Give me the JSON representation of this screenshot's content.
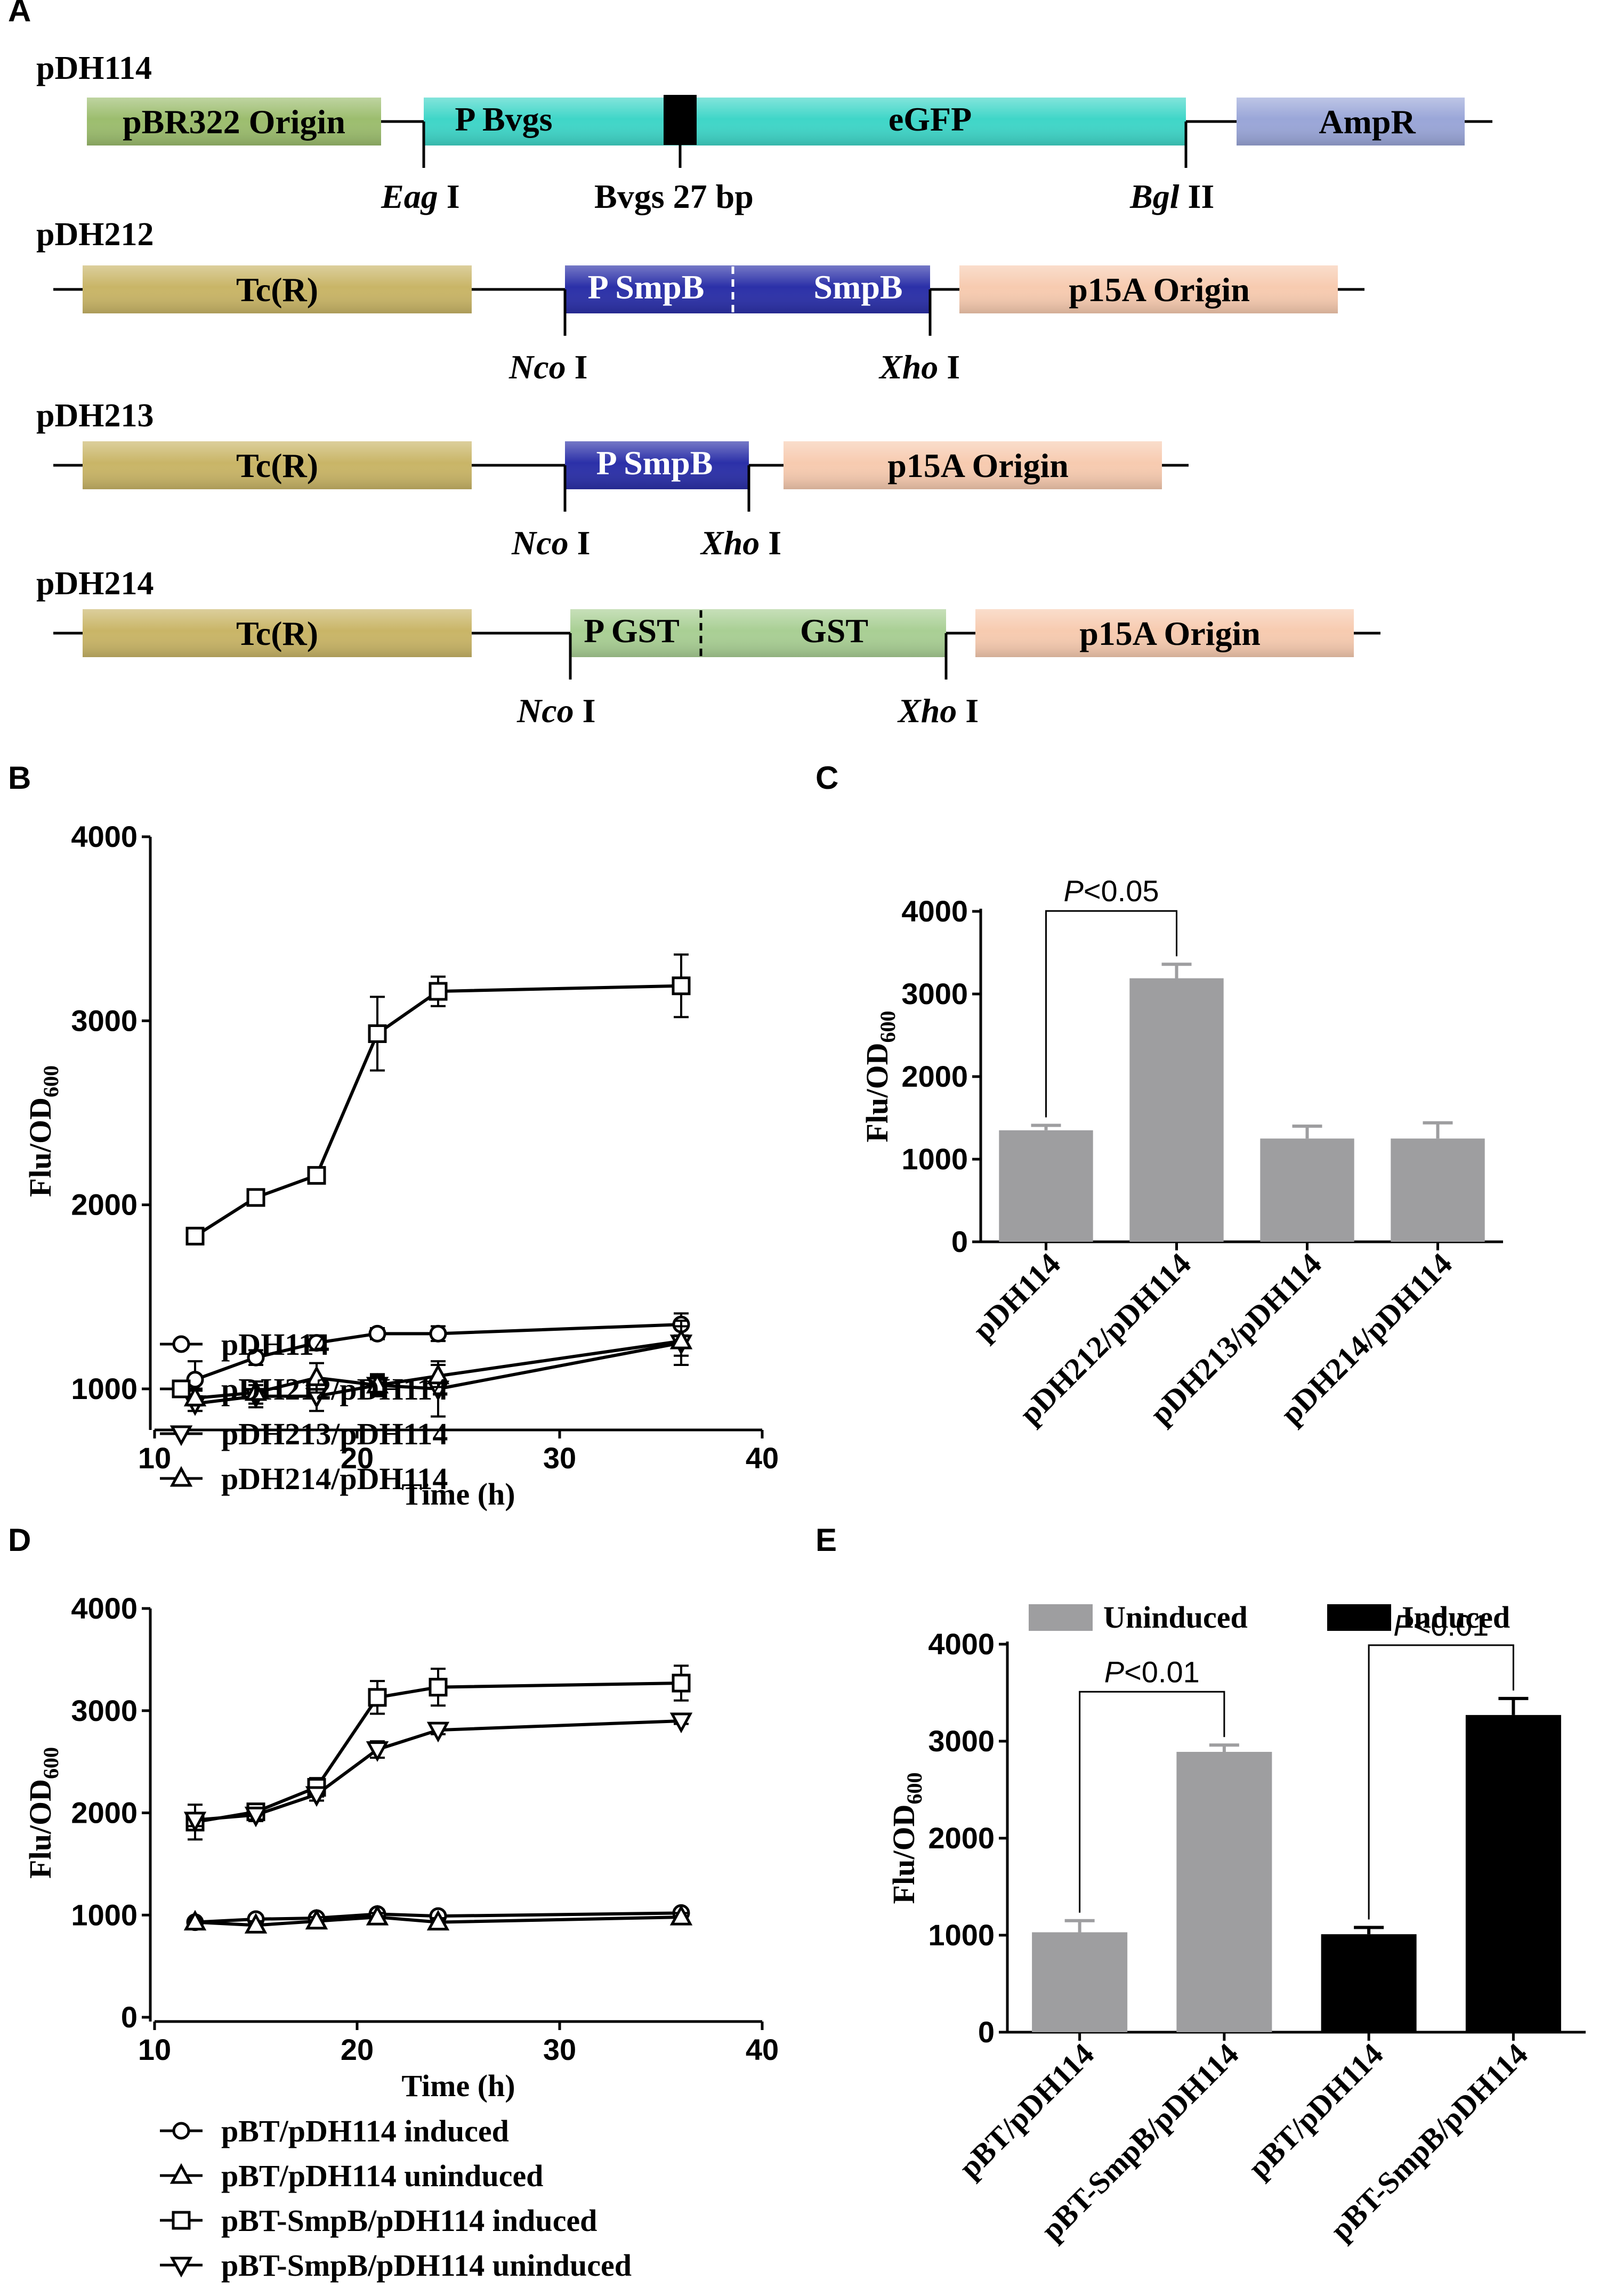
{
  "panels": {
    "a": "A",
    "b": "B",
    "c": "C",
    "d": "D",
    "e": "E"
  },
  "constructs": [
    {
      "name": "pDH114",
      "segments": [
        {
          "label": "pBR322 Origin",
          "color": "#9cbd6e"
        },
        {
          "label": "P Bvgs",
          "color": "#3fd6c8"
        },
        {
          "label": "eGFP",
          "color": "#3fd6c8"
        },
        {
          "label": "AmpR",
          "color": "#9aa6d8"
        }
      ],
      "sites": [
        {
          "italic": "Eag",
          "roman": " I"
        },
        {
          "italic": "",
          "roman": "Bvgs 27 bp"
        },
        {
          "italic": "Bgl",
          "roman": " II"
        }
      ]
    },
    {
      "name": "pDH212",
      "segments": [
        {
          "label": "Tc(R)",
          "color": "#c9b567"
        },
        {
          "label": "P SmpB",
          "color": "#2b30a8"
        },
        {
          "label": "SmpB",
          "color": "#2b30a8"
        },
        {
          "label": "p15A Origin",
          "color": "#f7cbb0"
        }
      ],
      "sites": [
        {
          "italic": "Nco",
          "roman": " I"
        },
        {
          "italic": "Xho",
          "roman": " I"
        }
      ]
    },
    {
      "name": "pDH213",
      "segments": [
        {
          "label": "Tc(R)",
          "color": "#c9b567"
        },
        {
          "label": "P SmpB",
          "color": "#2b30a8"
        },
        {
          "label": "p15A Origin",
          "color": "#f7cbb0"
        }
      ],
      "sites": [
        {
          "italic": "Nco",
          "roman": " I"
        },
        {
          "italic": "Xho",
          "roman": " I"
        }
      ]
    },
    {
      "name": "pDH214",
      "segments": [
        {
          "label": "Tc(R)",
          "color": "#c9b567"
        },
        {
          "label": "P GST",
          "color": "#a9cf94"
        },
        {
          "label": "GST",
          "color": "#a9cf94"
        },
        {
          "label": "p15A Origin",
          "color": "#f7cbb0"
        }
      ],
      "sites": [
        {
          "italic": "Nco",
          "roman": " I"
        },
        {
          "italic": "Xho",
          "roman": " I"
        }
      ]
    }
  ],
  "chart_data": [
    {
      "id": "B",
      "type": "line",
      "xlabel": "Time (h)",
      "ylabel_main": "Flu/OD",
      "ylabel_sub": "600",
      "xlim": [
        10,
        40
      ],
      "ylim": [
        800,
        4000
      ],
      "xticks": [
        10,
        20,
        30,
        40
      ],
      "yticks": [
        1000,
        2000,
        3000,
        4000
      ],
      "series": [
        {
          "name": "pDH114",
          "marker": "circle",
          "x": [
            12,
            15,
            18,
            21,
            24,
            36
          ],
          "y": [
            1050,
            1170,
            1250,
            1300,
            1300,
            1350
          ],
          "err": [
            100,
            40,
            40,
            30,
            40,
            60
          ]
        },
        {
          "name": "pDH212/pDH114",
          "marker": "square",
          "x": [
            12,
            15,
            18,
            21,
            24,
            36
          ],
          "y": [
            1830,
            2040,
            2160,
            2930,
            3160,
            3190
          ],
          "err": [
            30,
            40,
            40,
            200,
            80,
            170
          ]
        },
        {
          "name": "pDH213/pDH114",
          "marker": "triangle-down",
          "x": [
            12,
            15,
            18,
            21,
            24,
            36
          ],
          "y": [
            920,
            960,
            960,
            1020,
            1000,
            1250
          ],
          "err": [
            40,
            60,
            80,
            60,
            150,
            120
          ]
        },
        {
          "name": "pDH214/pDH114",
          "marker": "triangle-up",
          "x": [
            12,
            15,
            18,
            21,
            24,
            36
          ],
          "y": [
            950,
            980,
            1060,
            1020,
            1070,
            1260
          ],
          "err": [
            40,
            60,
            80,
            50,
            60,
            80
          ]
        }
      ]
    },
    {
      "id": "C",
      "type": "bar",
      "ylabel_main": "Flu/OD",
      "ylabel_sub": "600",
      "ylim": [
        0,
        4000
      ],
      "yticks": [
        0,
        1000,
        2000,
        3000,
        4000
      ],
      "categories": [
        "pDH114",
        "pDH212/pDH114",
        "pDH213/pDH114",
        "pDH214/pDH114"
      ],
      "values": [
        1350,
        3190,
        1250,
        1250
      ],
      "err": [
        60,
        170,
        150,
        190
      ],
      "bar_color": "#9e9ea0",
      "significance": [
        {
          "from": 0,
          "to": 1,
          "italic": "P",
          "text": "<0.05"
        }
      ]
    },
    {
      "id": "D",
      "type": "line",
      "xlabel": "Time (h)",
      "ylabel_main": "Flu/OD",
      "ylabel_sub": "600",
      "xlim": [
        10,
        40
      ],
      "ylim": [
        0,
        4000
      ],
      "xticks": [
        10,
        20,
        30,
        40
      ],
      "yticks": [
        0,
        1000,
        2000,
        3000,
        4000
      ],
      "series": [
        {
          "name": "pBT/pDH114 induced",
          "marker": "circle",
          "x": [
            12,
            15,
            18,
            21,
            24,
            36
          ],
          "y": [
            930,
            960,
            970,
            1010,
            990,
            1020
          ],
          "err": [
            30,
            40,
            30,
            40,
            40,
            30
          ]
        },
        {
          "name": "pBT/pDH114 uninduced",
          "marker": "triangle-up",
          "x": [
            12,
            15,
            18,
            21,
            24,
            36
          ],
          "y": [
            930,
            900,
            940,
            980,
            930,
            980
          ],
          "err": [
            30,
            40,
            40,
            40,
            40,
            40
          ]
        },
        {
          "name": "pBT-SmpB/pDH114 induced",
          "marker": "square",
          "x": [
            12,
            15,
            18,
            21,
            24,
            36
          ],
          "y": [
            1910,
            2010,
            2250,
            3130,
            3230,
            3270
          ],
          "err": [
            170,
            60,
            90,
            160,
            180,
            170
          ]
        },
        {
          "name": "pBT-SmpB/pDH114 uninduced",
          "marker": "triangle-down",
          "x": [
            12,
            15,
            18,
            21,
            24,
            36
          ],
          "y": [
            1930,
            1980,
            2180,
            2620,
            2810,
            2900
          ],
          "err": [
            60,
            60,
            60,
            80,
            40,
            30
          ]
        }
      ]
    },
    {
      "id": "E",
      "type": "bar",
      "ylabel_main": "Flu/OD",
      "ylabel_sub": "600",
      "ylim": [
        0,
        4000
      ],
      "yticks": [
        0,
        1000,
        2000,
        3000,
        4000
      ],
      "legend": [
        {
          "name": "Uninduced",
          "color": "#9e9ea0"
        },
        {
          "name": "Induced",
          "color": "#000000"
        }
      ],
      "categories": [
        "pBT/pDH114",
        "pBT-SmpB/pDH114",
        "pBT/pDH114",
        "pBT-SmpB/pDH114"
      ],
      "values": [
        1030,
        2890,
        1010,
        3270
      ],
      "err": [
        120,
        70,
        70,
        170
      ],
      "colors": [
        "#9e9ea0",
        "#9e9ea0",
        "#000000",
        "#000000"
      ],
      "significance": [
        {
          "from": 0,
          "to": 1,
          "italic": "P",
          "text": "<0.01"
        },
        {
          "from": 2,
          "to": 3,
          "italic": "P",
          "text": "<0.01"
        }
      ]
    }
  ]
}
